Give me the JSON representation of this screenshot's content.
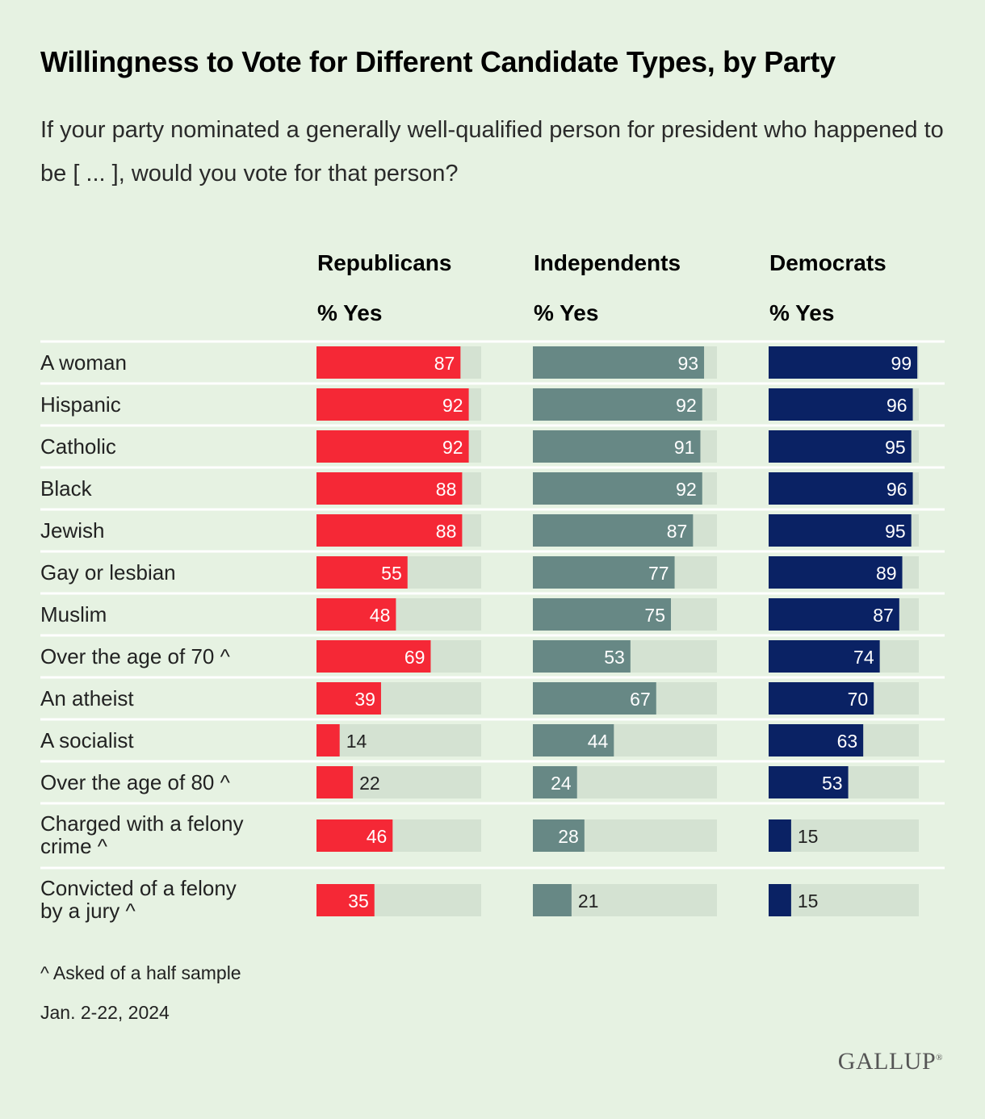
{
  "title": "Willingness to Vote for Different Candidate Types, by Party",
  "subtitle": "If your party nominated a generally well-qualified person for president who happened to be [ ... ], would you vote for that person?",
  "footnote": "^ Asked of a half sample",
  "date": "Jan. 2-22, 2024",
  "logo": "GALLUP",
  "colors": {
    "background": "#e6f2e2",
    "track": "#d4e2d2",
    "separator": "#ffffff",
    "republicans": "#f52836",
    "independents": "#678885",
    "democrats": "#0a2264"
  },
  "chart_data": {
    "type": "bar",
    "orientation": "horizontal",
    "xlim": [
      0,
      100
    ],
    "categories": [
      "A woman",
      "Hispanic",
      "Catholic",
      "Black",
      "Jewish",
      "Gay or lesbian",
      "Muslim",
      "Over the age of 70 ^",
      "An atheist",
      "A socialist",
      "Over the age of 80 ^",
      "Charged with a felony crime ^",
      "Convicted of a felony by a jury ^"
    ],
    "series": [
      {
        "name": "Republicans",
        "unit_label": "% Yes",
        "values": [
          87,
          92,
          92,
          88,
          88,
          55,
          48,
          69,
          39,
          14,
          22,
          46,
          35
        ]
      },
      {
        "name": "Independents",
        "unit_label": "% Yes",
        "values": [
          93,
          92,
          91,
          92,
          87,
          77,
          75,
          53,
          67,
          44,
          24,
          28,
          21
        ]
      },
      {
        "name": "Democrats",
        "unit_label": "% Yes",
        "values": [
          99,
          96,
          95,
          96,
          95,
          89,
          87,
          74,
          70,
          63,
          53,
          15,
          15
        ]
      }
    ]
  }
}
